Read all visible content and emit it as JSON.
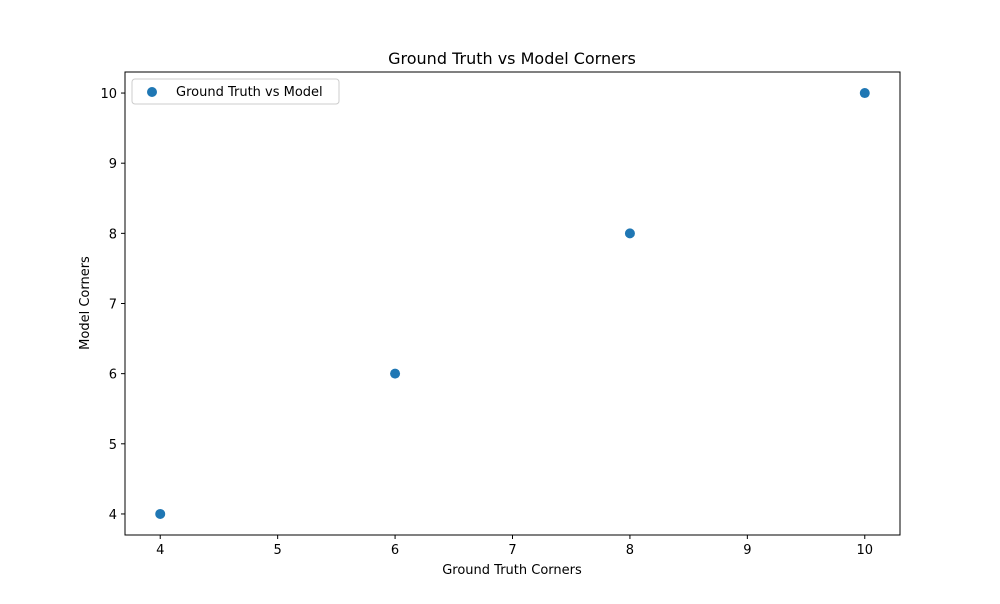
{
  "chart_data": {
    "type": "scatter",
    "title": "Ground Truth vs Model Corners",
    "xlabel": "Ground Truth Corners",
    "ylabel": "Model Corners",
    "xlim": [
      3.7,
      10.3
    ],
    "ylim": [
      3.7,
      10.3
    ],
    "xticks": [
      4,
      5,
      6,
      7,
      8,
      9,
      10
    ],
    "yticks": [
      4,
      5,
      6,
      7,
      8,
      9,
      10
    ],
    "grid": false,
    "legend": {
      "position": "top-left"
    },
    "series": [
      {
        "name": "Ground Truth vs Model",
        "color": "#1f77b4",
        "x": [
          4,
          6,
          8,
          10
        ],
        "y": [
          4,
          6,
          8,
          10
        ]
      }
    ]
  }
}
